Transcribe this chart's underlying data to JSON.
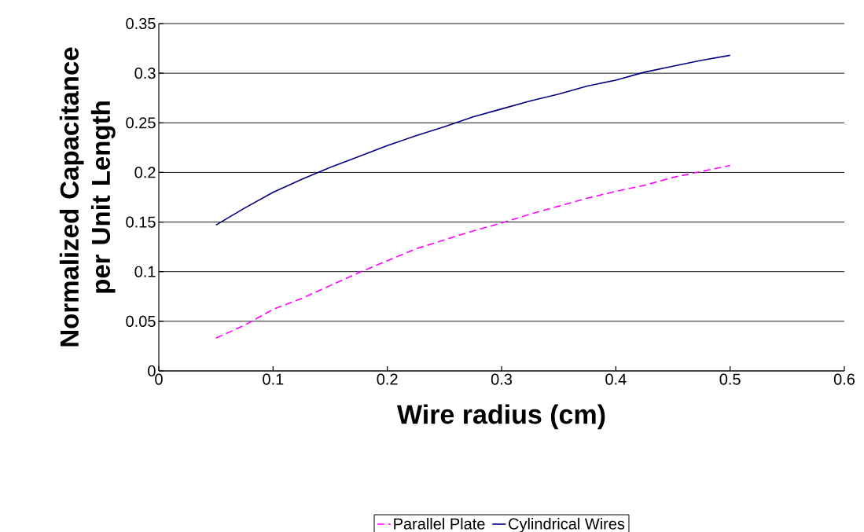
{
  "chart_data": {
    "type": "line",
    "xlabel": "Wire radius (cm)",
    "ylabel": "Normalized Capacitance per Unit Length",
    "x": [
      0.05,
      0.075,
      0.1,
      0.125,
      0.15,
      0.175,
      0.2,
      0.225,
      0.25,
      0.275,
      0.3,
      0.325,
      0.35,
      0.375,
      0.4,
      0.425,
      0.45,
      0.475,
      0.5
    ],
    "series": [
      {
        "name": "Parallel Plate",
        "color": "#ff00ff",
        "line_style": "dashed",
        "values": [
          0.033,
          0.046,
          0.062,
          0.073,
          0.086,
          0.099,
          0.111,
          0.123,
          0.132,
          0.141,
          0.149,
          0.158,
          0.166,
          0.174,
          0.181,
          0.187,
          0.195,
          0.201,
          0.207
        ]
      },
      {
        "name": "Cylindrical Wires",
        "color": "#000080",
        "line_style": "solid",
        "values": [
          0.147,
          0.164,
          0.18,
          0.193,
          0.205,
          0.216,
          0.227,
          0.237,
          0.246,
          0.256,
          0.264,
          0.272,
          0.279,
          0.287,
          0.293,
          0.301,
          0.307,
          0.313,
          0.318
        ]
      }
    ],
    "xlim": [
      0,
      0.6
    ],
    "xticks": [
      0,
      0.1,
      0.2,
      0.3,
      0.4,
      0.5,
      0.6
    ],
    "ylim": [
      0,
      0.35
    ],
    "yticks": [
      0,
      0.05,
      0.1,
      0.15,
      0.2,
      0.25,
      0.3,
      0.35
    ],
    "grid": "y",
    "legend": "bottom",
    "marker": "none"
  }
}
